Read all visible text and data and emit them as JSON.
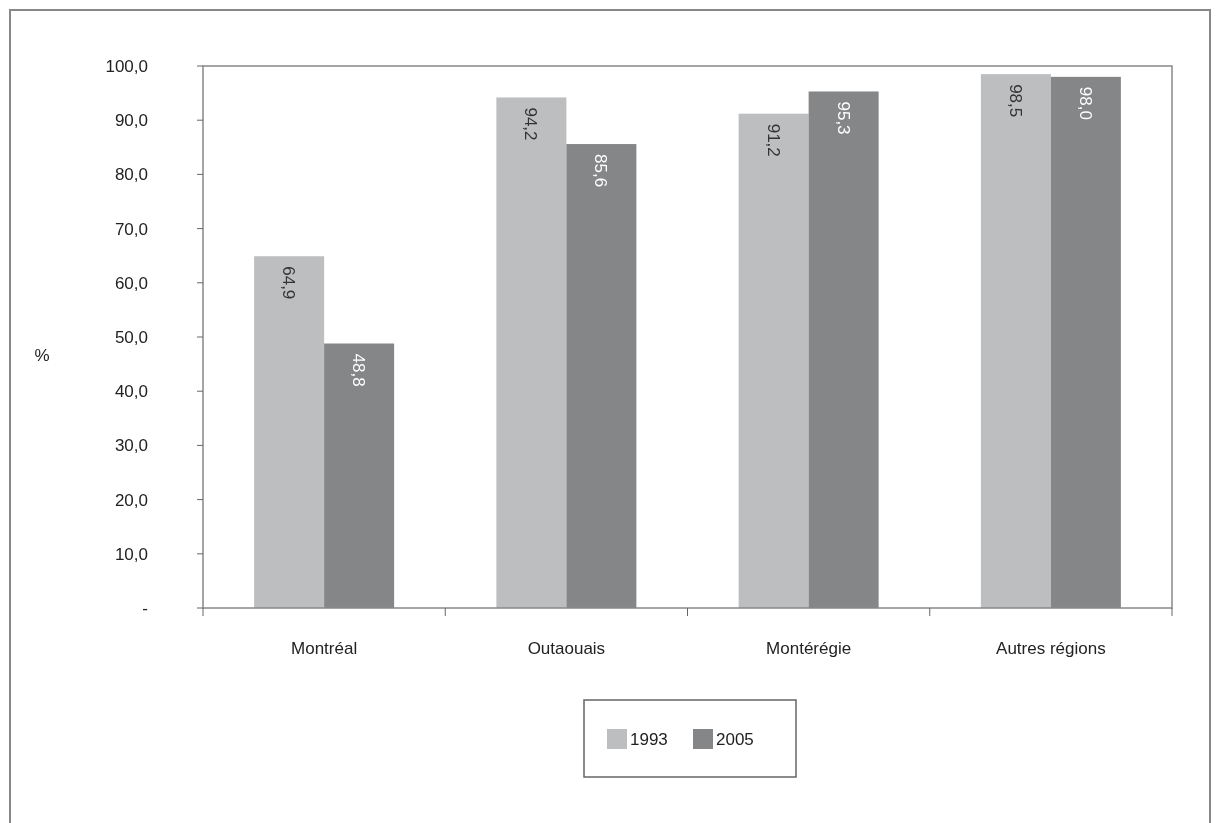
{
  "chart_data": {
    "type": "bar",
    "ylabel": "%",
    "categories": [
      "Montréal",
      "Outaouais",
      "Montérégie",
      "Autres régions"
    ],
    "series": [
      {
        "name": "1993",
        "color": "#bcbec0",
        "values": [
          64.9,
          94.2,
          91.2,
          98.5
        ],
        "value_labels": [
          "64,9",
          "94,2",
          "91,2",
          "98,5"
        ]
      },
      {
        "name": "2005",
        "color": "#858688",
        "values": [
          48.8,
          85.6,
          95.3,
          98.0
        ],
        "value_labels": [
          "48,8",
          "85,6",
          "95,3",
          "98,0"
        ]
      }
    ],
    "ylim": [
      0,
      100
    ],
    "yticks": [
      {
        "value": 0,
        "label": "-"
      },
      {
        "value": 10,
        "label": "10,0"
      },
      {
        "value": 20,
        "label": "20,0"
      },
      {
        "value": 30,
        "label": "30,0"
      },
      {
        "value": 40,
        "label": "40,0"
      },
      {
        "value": 50,
        "label": "50,0"
      },
      {
        "value": 60,
        "label": "60,0"
      },
      {
        "value": 70,
        "label": "70,0"
      },
      {
        "value": 80,
        "label": "80,0"
      },
      {
        "value": 90,
        "label": "90,0"
      },
      {
        "value": 100,
        "label": "100,0"
      }
    ],
    "grid": false,
    "legend": "bottom"
  }
}
